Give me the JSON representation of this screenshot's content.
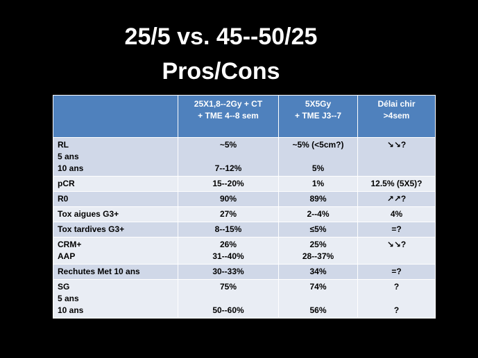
{
  "title": {
    "line1": "25/5 vs. 45--50/25",
    "line2": "Pros/Cons"
  },
  "table": {
    "headers": [
      [
        "",
        ""
      ],
      [
        "25X1,8--2Gy + CT",
        "+ TME 4--8 sem"
      ],
      [
        "5X5Gy",
        "+ TME J3--7"
      ],
      [
        "Délai chir",
        ">4sem"
      ]
    ],
    "rows": [
      {
        "label": [
          "RL",
          "5 ans",
          "10 ans"
        ],
        "c1": [
          "~5%",
          "",
          "7--12%"
        ],
        "c2": [
          "~5% (<5cm?)",
          "",
          "5%"
        ],
        "c3": [
          "↘↘?",
          "",
          ""
        ]
      },
      {
        "label": [
          "pCR"
        ],
        "c1": [
          "15--20%"
        ],
        "c2": [
          "1%"
        ],
        "c3": [
          "12.5% (5X5)?"
        ]
      },
      {
        "label": [
          "R0"
        ],
        "c1": [
          "90%"
        ],
        "c2": [
          "89%"
        ],
        "c3": [
          "↗↗?"
        ]
      },
      {
        "label": [
          "Tox aigues G3+"
        ],
        "c1": [
          "27%"
        ],
        "c2": [
          "2--4%"
        ],
        "c3": [
          "4%"
        ]
      },
      {
        "label": [
          "Tox tardives G3+"
        ],
        "c1": [
          "8--15%"
        ],
        "c2": [
          "≤5%"
        ],
        "c3": [
          "=?"
        ]
      },
      {
        "label": [
          "CRM+",
          "AAP"
        ],
        "c1": [
          "26%",
          "31--40%"
        ],
        "c2": [
          "25%",
          "28--37%"
        ],
        "c3": [
          "↘↘?",
          ""
        ]
      },
      {
        "label": [
          "Rechutes Met 10 ans"
        ],
        "c1": [
          "30--33%"
        ],
        "c2": [
          "34%"
        ],
        "c3": [
          "=?"
        ]
      },
      {
        "label": [
          "SG",
          "5 ans",
          "10 ans"
        ],
        "c1": [
          "75%",
          "",
          "50--60%"
        ],
        "c2": [
          "74%",
          "",
          "56%"
        ],
        "c3": [
          "?",
          "",
          "?"
        ]
      }
    ]
  }
}
